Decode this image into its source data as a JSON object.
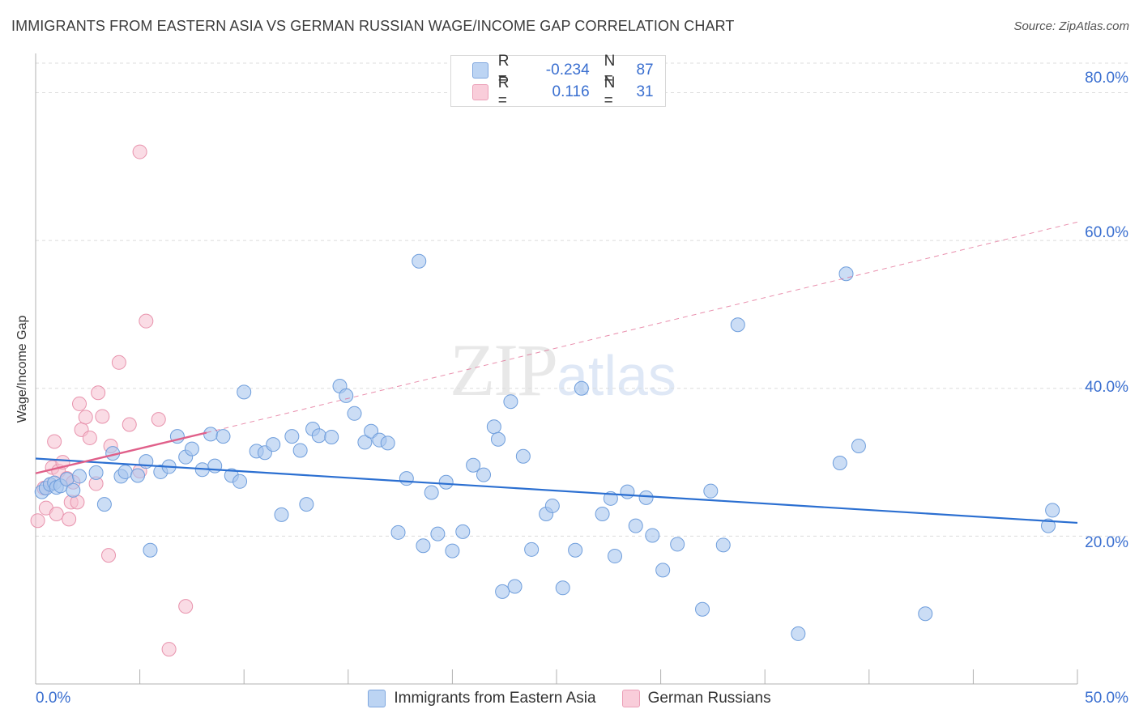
{
  "header": {
    "title": "IMMIGRANTS FROM EASTERN ASIA VS GERMAN RUSSIAN WAGE/INCOME GAP CORRELATION CHART",
    "source": "Source: ZipAtlas.com"
  },
  "watermark": {
    "part1": "ZIP",
    "part2": "atlas"
  },
  "legend": {
    "rows": [
      {
        "r_label": "R =",
        "r_value": "-0.234",
        "n_label": "N =",
        "n_value": "87"
      },
      {
        "r_label": "R =",
        "r_value": "0.116",
        "n_label": "N =",
        "n_value": "31"
      }
    ]
  },
  "colors": {
    "blue_fill": "#a9c7ee",
    "blue_stroke": "#6f9edc",
    "blue_line": "#2b6fd1",
    "pink_fill": "#f6bfd0",
    "pink_stroke": "#e893ad",
    "pink_line": "#e0608a",
    "tick_text": "#3a6fd0",
    "grid": "#dcdcdc"
  },
  "chart_data": {
    "type": "scatter",
    "title": "IMMIGRANTS FROM EASTERN ASIA VS GERMAN RUSSIAN WAGE/INCOME GAP CORRELATION CHART",
    "xlabel": "",
    "ylabel": "Wage/Income Gap",
    "xlim": [
      0,
      50
    ],
    "ylim": [
      0,
      84
    ],
    "x_tick_labels": [
      "0.0%",
      "50.0%"
    ],
    "y_ticks": [
      20,
      40,
      60,
      80
    ],
    "y_tick_labels": [
      "20.0%",
      "40.0%",
      "60.0%",
      "80.0%"
    ],
    "grid": "horizontal dashed",
    "legend_position": "top-center",
    "series": [
      {
        "name": "Immigrants from Eastern Asia",
        "color": "#a9c7ee",
        "r": -0.234,
        "n": 87,
        "trend": {
          "x": [
            0,
            50
          ],
          "y": [
            30.5,
            21.8
          ],
          "style": "solid"
        },
        "points": [
          [
            0.3,
            26.0
          ],
          [
            0.5,
            26.5
          ],
          [
            0.7,
            27.0
          ],
          [
            0.9,
            27.2
          ],
          [
            1.0,
            26.6
          ],
          [
            1.2,
            26.8
          ],
          [
            1.5,
            27.7
          ],
          [
            1.8,
            26.2
          ],
          [
            2.1,
            28.1
          ],
          [
            2.9,
            28.6
          ],
          [
            3.3,
            24.3
          ],
          [
            3.7,
            31.2
          ],
          [
            4.1,
            28.1
          ],
          [
            4.3,
            28.7
          ],
          [
            4.9,
            28.2
          ],
          [
            5.3,
            30.1
          ],
          [
            5.5,
            18.1
          ],
          [
            6.0,
            28.7
          ],
          [
            6.4,
            29.4
          ],
          [
            6.8,
            33.5
          ],
          [
            7.2,
            30.7
          ],
          [
            7.5,
            31.8
          ],
          [
            8.0,
            29.0
          ],
          [
            8.4,
            33.8
          ],
          [
            8.6,
            29.5
          ],
          [
            9.0,
            33.5
          ],
          [
            9.4,
            28.2
          ],
          [
            9.8,
            27.4
          ],
          [
            10.0,
            39.5
          ],
          [
            10.6,
            31.5
          ],
          [
            11.0,
            31.3
          ],
          [
            11.4,
            32.4
          ],
          [
            11.8,
            22.9
          ],
          [
            12.3,
            33.5
          ],
          [
            12.7,
            31.6
          ],
          [
            13.0,
            24.3
          ],
          [
            13.3,
            34.5
          ],
          [
            13.6,
            33.6
          ],
          [
            14.2,
            33.4
          ],
          [
            14.6,
            40.3
          ],
          [
            14.9,
            39.0
          ],
          [
            15.3,
            36.6
          ],
          [
            15.8,
            32.7
          ],
          [
            16.1,
            34.2
          ],
          [
            16.5,
            33.0
          ],
          [
            16.9,
            32.6
          ],
          [
            17.4,
            20.5
          ],
          [
            17.8,
            27.8
          ],
          [
            18.4,
            57.2
          ],
          [
            18.6,
            18.7
          ],
          [
            19.0,
            25.9
          ],
          [
            19.3,
            20.3
          ],
          [
            19.7,
            27.3
          ],
          [
            20.0,
            18.0
          ],
          [
            20.5,
            20.6
          ],
          [
            21.0,
            29.6
          ],
          [
            21.5,
            28.3
          ],
          [
            22.0,
            34.8
          ],
          [
            22.2,
            33.1
          ],
          [
            22.8,
            38.2
          ],
          [
            22.4,
            12.5
          ],
          [
            23.0,
            13.2
          ],
          [
            23.4,
            30.8
          ],
          [
            23.8,
            18.2
          ],
          [
            24.5,
            23.0
          ],
          [
            24.8,
            24.1
          ],
          [
            25.3,
            13.0
          ],
          [
            25.9,
            18.1
          ],
          [
            26.2,
            40.0
          ],
          [
            27.2,
            23.0
          ],
          [
            27.6,
            25.1
          ],
          [
            27.8,
            17.3
          ],
          [
            28.4,
            26.0
          ],
          [
            28.8,
            21.4
          ],
          [
            29.3,
            25.2
          ],
          [
            29.6,
            20.1
          ],
          [
            30.1,
            15.4
          ],
          [
            30.8,
            18.9
          ],
          [
            32.0,
            10.1
          ],
          [
            32.4,
            26.1
          ],
          [
            33.0,
            18.8
          ],
          [
            33.7,
            48.6
          ],
          [
            36.6,
            6.8
          ],
          [
            38.6,
            29.9
          ],
          [
            38.9,
            55.5
          ],
          [
            39.5,
            32.2
          ],
          [
            42.7,
            9.5
          ],
          [
            48.6,
            21.4
          ],
          [
            48.8,
            23.5
          ]
        ]
      },
      {
        "name": "German Russians",
        "color": "#f6bfd0",
        "r": 0.116,
        "n": 31,
        "trend_solid": {
          "x": [
            0,
            8.2
          ],
          "y": [
            28.5,
            34.0
          ]
        },
        "trend_dashed": {
          "x": [
            8.2,
            50
          ],
          "y": [
            34.0,
            62.5
          ]
        },
        "points": [
          [
            0.1,
            22.1
          ],
          [
            0.4,
            26.5
          ],
          [
            0.5,
            23.8
          ],
          [
            0.7,
            27.0
          ],
          [
            0.8,
            29.3
          ],
          [
            0.9,
            32.8
          ],
          [
            1.0,
            23.0
          ],
          [
            1.1,
            28.8
          ],
          [
            1.3,
            30.0
          ],
          [
            1.5,
            27.8
          ],
          [
            1.6,
            22.3
          ],
          [
            1.7,
            24.6
          ],
          [
            1.8,
            27.3
          ],
          [
            2.0,
            24.6
          ],
          [
            2.1,
            37.9
          ],
          [
            2.2,
            34.4
          ],
          [
            2.4,
            36.1
          ],
          [
            2.6,
            33.3
          ],
          [
            2.9,
            27.1
          ],
          [
            3.0,
            39.4
          ],
          [
            3.2,
            36.2
          ],
          [
            3.5,
            17.4
          ],
          [
            3.6,
            32.2
          ],
          [
            4.0,
            43.5
          ],
          [
            4.5,
            35.1
          ],
          [
            5.0,
            28.8
          ],
          [
            5.0,
            72.0
          ],
          [
            5.3,
            49.1
          ],
          [
            5.9,
            35.8
          ],
          [
            6.4,
            4.7
          ],
          [
            7.2,
            10.5
          ]
        ]
      }
    ]
  },
  "bottom_legend": {
    "items": [
      {
        "label": "Immigrants from Eastern Asia"
      },
      {
        "label": "German Russians"
      }
    ]
  }
}
